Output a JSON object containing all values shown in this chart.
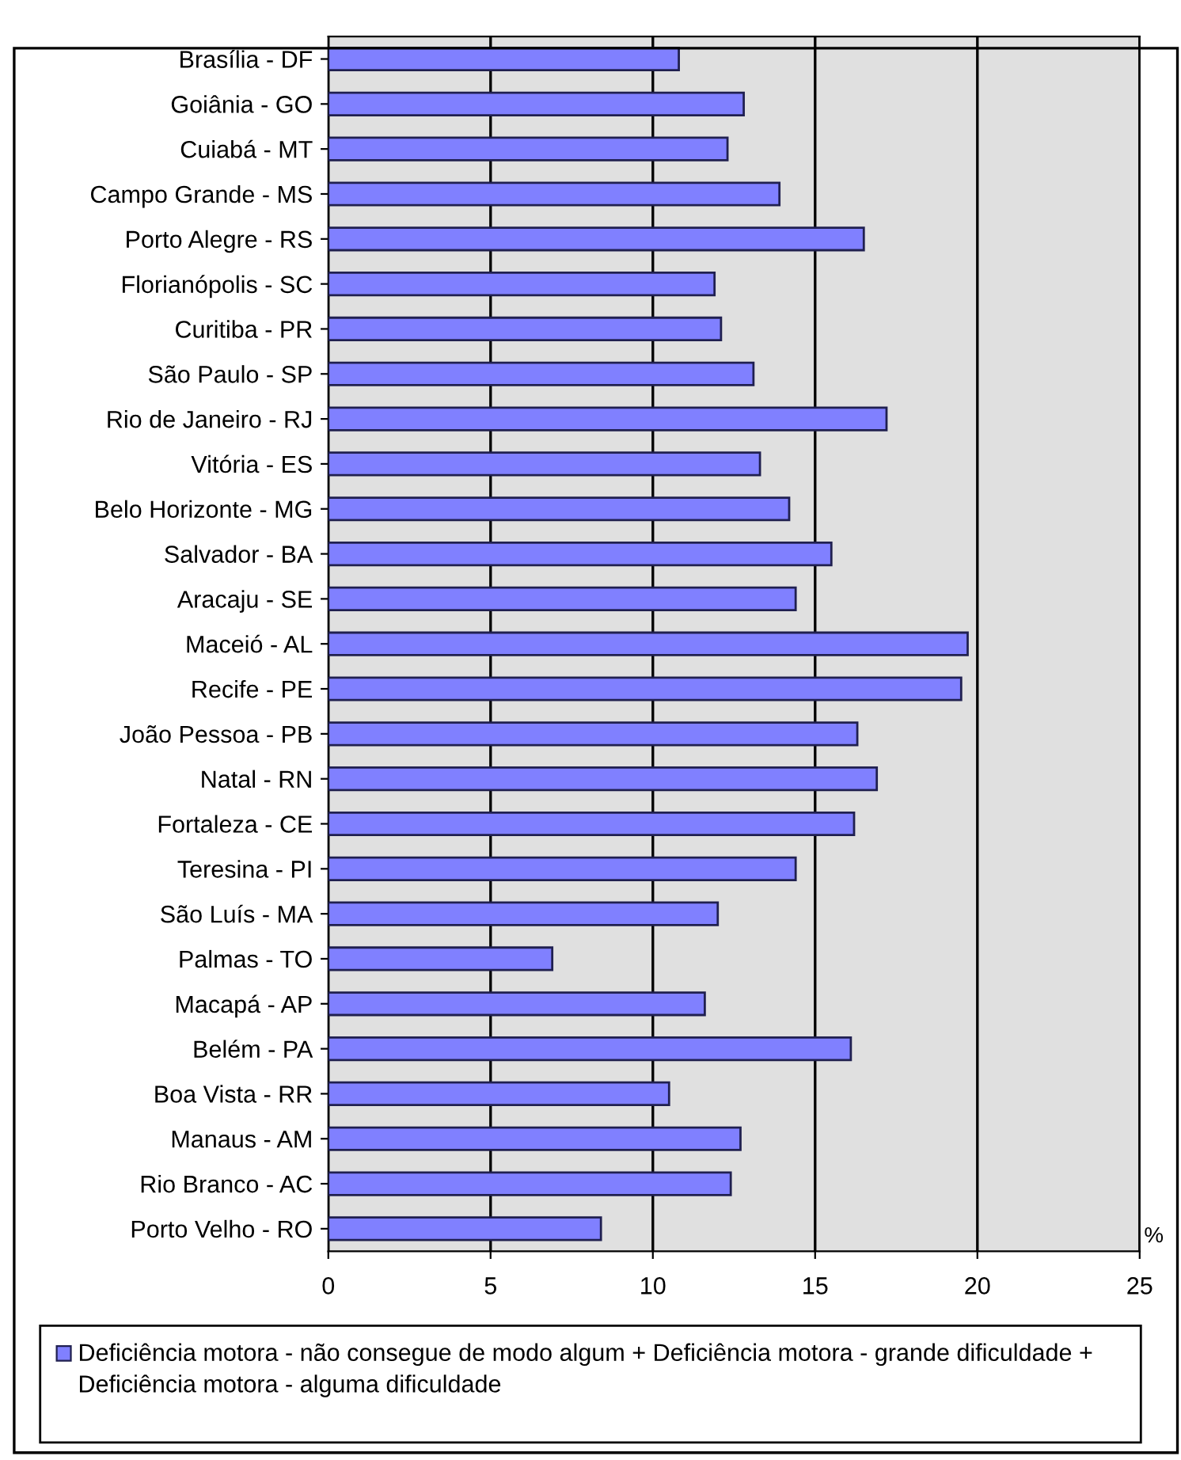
{
  "chart_data": {
    "type": "bar",
    "orientation": "horizontal",
    "categories": [
      "Brasília - DF",
      "Goiânia - GO",
      "Cuiabá - MT",
      "Campo Grande - MS",
      "Porto Alegre - RS",
      "Florianópolis - SC",
      "Curitiba - PR",
      "São Paulo - SP",
      "Rio de Janeiro - RJ",
      "Vitória - ES",
      "Belo Horizonte - MG",
      "Salvador - BA",
      "Aracaju - SE",
      "Maceió - AL",
      "Recife - PE",
      "João Pessoa - PB",
      "Natal - RN",
      "Fortaleza - CE",
      "Teresina - PI",
      "São Luís - MA",
      "Palmas - TO",
      "Macapá - AP",
      "Belém - PA",
      "Boa Vista - RR",
      "Manaus - AM",
      "Rio Branco - AC",
      "Porto Velho - RO"
    ],
    "series": [
      {
        "name": "Deficiência motora - não consegue de modo algum + Deficiência motora - grande dificuldade + Deficiência motora - alguma dificuldade",
        "color": "#8080ff",
        "values": [
          10.8,
          12.8,
          12.3,
          13.9,
          16.5,
          11.9,
          12.1,
          13.1,
          17.2,
          13.3,
          14.2,
          15.5,
          14.4,
          19.7,
          19.5,
          16.3,
          16.9,
          16.2,
          14.4,
          12.0,
          6.9,
          11.6,
          16.1,
          10.5,
          12.7,
          12.4,
          8.4
        ]
      }
    ],
    "xlabel": "%",
    "xlim": [
      0,
      25
    ],
    "xticks": [
      0,
      5,
      10,
      15,
      20,
      25
    ],
    "grid": "x",
    "legend": "bottom"
  }
}
